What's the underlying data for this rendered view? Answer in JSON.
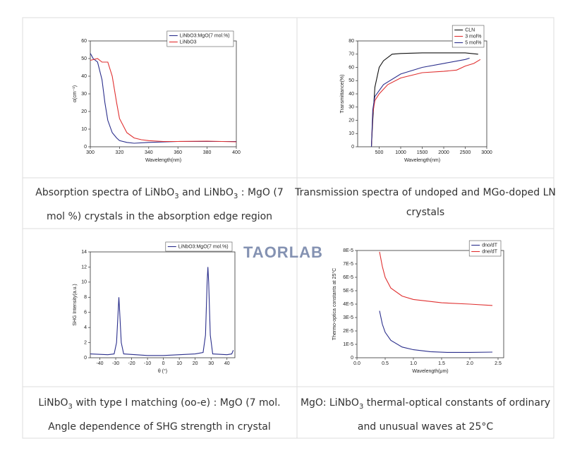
{
  "watermark": "TAORLAB",
  "chart_data": [
    {
      "type": "line",
      "xlabel": "Wavelength(nm)",
      "ylabel": "α(cm⁻¹)",
      "xlim": [
        300,
        400
      ],
      "xticks": [
        300,
        320,
        340,
        360,
        380,
        400
      ],
      "ylim": [
        0,
        60
      ],
      "yticks": [
        0,
        10,
        20,
        30,
        40,
        50,
        60
      ],
      "legend": "upper right",
      "series": [
        {
          "name": "LiNbO3:MgO(7 mol.%)",
          "color": "#2b2f8c",
          "x": [
            300,
            302,
            305,
            308,
            310,
            312,
            315,
            318,
            320,
            325,
            330,
            340,
            360,
            380,
            400
          ],
          "values": [
            53,
            50,
            48,
            38,
            25,
            15,
            8,
            5,
            3.5,
            2.5,
            2,
            2.5,
            3,
            3,
            3
          ]
        },
        {
          "name": "LiNbO3",
          "color": "#e03030",
          "x": [
            300,
            305,
            308,
            312,
            315,
            318,
            320,
            325,
            330,
            335,
            340,
            350,
            360,
            380,
            400
          ],
          "values": [
            49,
            50,
            48,
            48,
            40,
            25,
            16,
            8,
            5,
            4,
            3.5,
            3,
            3,
            3.2,
            2.8
          ]
        }
      ]
    },
    {
      "type": "line",
      "xlabel": "Wavelength(nm)",
      "ylabel": "Transmittance(%)",
      "xlim": [
        0,
        3000
      ],
      "xticks": [
        500,
        1000,
        1500,
        2000,
        2500,
        3000
      ],
      "ylim": [
        0,
        80
      ],
      "yticks": [
        0,
        10,
        20,
        30,
        40,
        50,
        60,
        70,
        80
      ],
      "legend": "upper right",
      "series": [
        {
          "name": "CLN",
          "color": "#111111",
          "x": [
            320,
            350,
            400,
            500,
            600,
            800,
            1000,
            1500,
            2000,
            2500,
            2800
          ],
          "values": [
            0,
            20,
            45,
            60,
            65,
            70,
            70.5,
            71,
            71,
            71,
            70
          ]
        },
        {
          "name": "3 mol%",
          "color": "#e03030",
          "x": [
            320,
            350,
            400,
            500,
            700,
            1000,
            1500,
            2000,
            2300,
            2500,
            2700,
            2850
          ],
          "values": [
            0,
            25,
            35,
            40,
            47,
            52,
            56,
            57,
            58,
            61,
            63,
            66
          ]
        },
        {
          "name": "5 mol%",
          "color": "#2b2f8c",
          "x": [
            320,
            350,
            400,
            600,
            1000,
            1500,
            2000,
            2500,
            2600
          ],
          "values": [
            0,
            28,
            38,
            47,
            55,
            60,
            63,
            66,
            67
          ]
        }
      ]
    },
    {
      "type": "line",
      "xlabel": "θ (°)",
      "ylabel": "SHG Intensity(a.u.)",
      "xlim": [
        -46,
        45
      ],
      "xticks": [
        -40,
        -30,
        -20,
        -10,
        0,
        10,
        20,
        30,
        40
      ],
      "ylim": [
        0,
        14
      ],
      "yticks": [
        0,
        2,
        4,
        6,
        8,
        10,
        12,
        14
      ],
      "legend": "upper right",
      "series": [
        {
          "name": "LiNbO3:MgO(7 mol.%)",
          "color": "#2b2f8c",
          "x": [
            -46,
            -35,
            -31,
            -29.5,
            -28.5,
            -28,
            -27.5,
            -26.5,
            -25,
            -10,
            0,
            10,
            20,
            25,
            26.5,
            27.5,
            28,
            28.5,
            29.5,
            31,
            40,
            43,
            44
          ],
          "values": [
            0.5,
            0.4,
            0.5,
            2,
            6,
            8,
            6,
            2,
            0.5,
            0.3,
            0.3,
            0.4,
            0.5,
            0.7,
            3,
            10,
            12,
            10,
            3,
            0.5,
            0.4,
            0.5,
            1
          ]
        }
      ]
    },
    {
      "type": "line",
      "xlabel": "Wavelength(μm)",
      "ylabel": "Thermo-optica constants at 25°C",
      "xlim": [
        0,
        2.6
      ],
      "xticks": [
        {
          "value": 0,
          "label": "0.0"
        },
        0.5,
        {
          "value": 1,
          "label": "1.0"
        },
        1.5,
        {
          "value": 2,
          "label": "2.0"
        },
        2.5
      ],
      "ylim": [
        0,
        8e-05
      ],
      "yticks": [
        0,
        {
          "value": 1e-05,
          "label": "1E-5"
        },
        {
          "value": 2e-05,
          "label": "2E-5"
        },
        {
          "value": 3e-05,
          "label": "3E-5"
        },
        {
          "value": 4e-05,
          "label": "4E-5"
        },
        {
          "value": 5e-05,
          "label": "5E-5"
        },
        {
          "value": 6e-05,
          "label": "6E-5"
        },
        {
          "value": 7e-05,
          "label": "7E-5"
        },
        {
          "value": 8e-05,
          "label": "8E-5"
        }
      ],
      "legend": "upper right",
      "series": [
        {
          "name": "dno/dT",
          "color": "#2b2f8c",
          "x": [
            0.4,
            0.45,
            0.5,
            0.6,
            0.8,
            1.0,
            1.3,
            1.6,
            2.0,
            2.4
          ],
          "values": [
            3.5e-05,
            2.5e-05,
            1.9e-05,
            1.3e-05,
            8e-06,
            6e-06,
            4.5e-06,
            4e-06,
            4e-06,
            4.2e-06
          ]
        },
        {
          "name": "dne/dT",
          "color": "#e03030",
          "x": [
            0.4,
            0.45,
            0.5,
            0.6,
            0.8,
            1.0,
            1.5,
            2.0,
            2.4
          ],
          "values": [
            7.9e-05,
            6.8e-05,
            6e-05,
            5.2e-05,
            4.6e-05,
            4.35e-05,
            4.1e-05,
            4e-05,
            3.9e-05
          ]
        }
      ]
    }
  ],
  "captions": [
    [
      "Absorption spectra of LiNbO",
      "3",
      " and LiNbO",
      "3",
      " : MgO (7 mol %) crystals in the absorption edge region"
    ],
    [
      "Transmission spectra of undoped and MGo-doped LN crystals"
    ],
    [
      "LiNbO",
      "3",
      " with type I matching (oo-e) : MgO (7 mol. Angle dependence of SHG strength in crystal"
    ],
    [
      "MgO: LiNbO",
      "3",
      " thermal-optical constants of ordinary and unusual waves at 25°C"
    ]
  ]
}
